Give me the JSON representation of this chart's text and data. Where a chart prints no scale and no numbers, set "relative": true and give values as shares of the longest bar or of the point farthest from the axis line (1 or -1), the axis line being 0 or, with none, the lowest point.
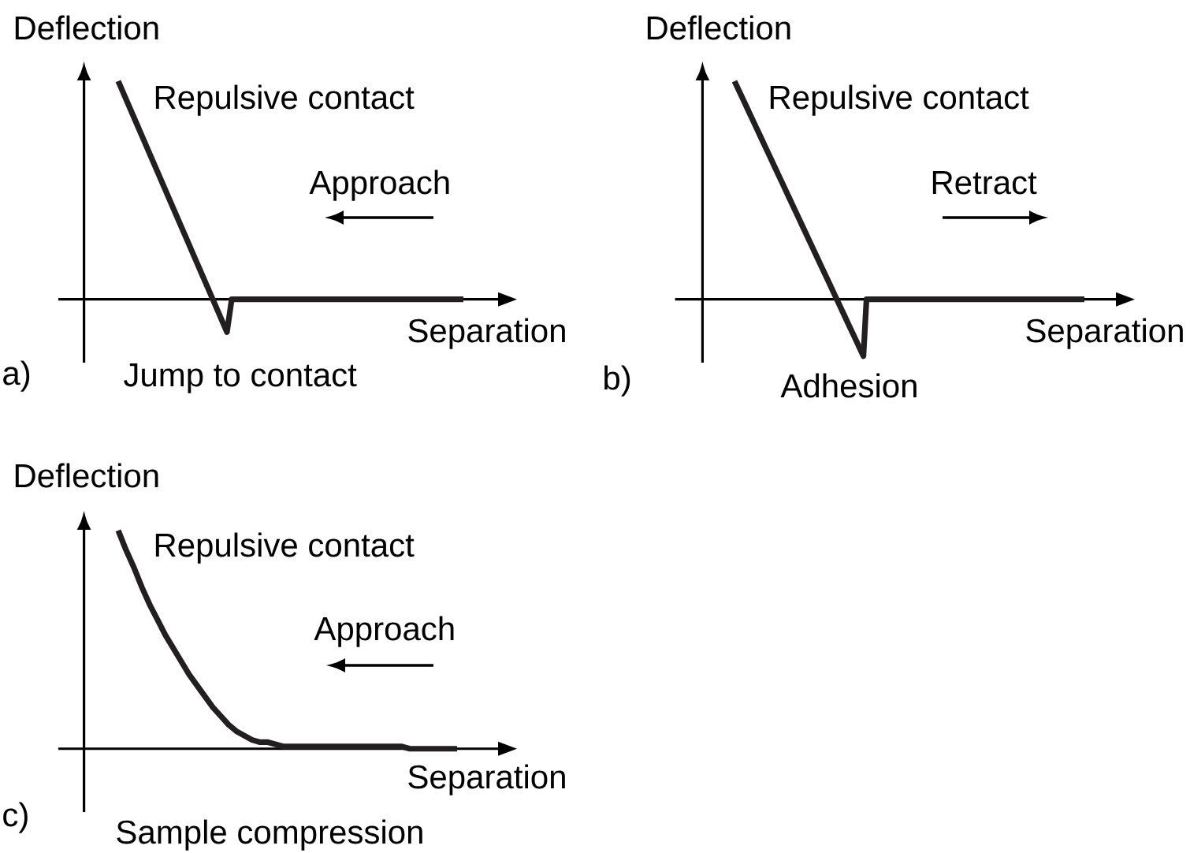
{
  "chart_data": [
    {
      "type": "line",
      "title": "a)",
      "xlabel": "Separation",
      "ylabel": "Deflection",
      "relative": true,
      "categories": [
        null,
        null,
        null,
        null,
        null,
        null,
        null,
        null,
        null,
        null,
        null,
        null,
        null,
        null,
        null,
        null,
        null,
        null,
        null,
        null,
        null,
        null,
        null,
        null,
        null,
        null,
        null,
        null,
        null,
        null,
        null,
        null,
        null,
        null,
        null,
        null,
        null,
        null,
        null,
        null,
        null,
        null,
        null,
        null,
        null,
        null,
        null,
        null,
        null,
        null,
        null,
        null,
        null,
        null,
        null,
        null,
        null,
        null,
        null,
        null,
        null,
        null,
        null,
        null,
        null,
        null,
        null,
        null,
        null,
        null,
        null,
        null,
        null,
        null
      ],
      "series": [
        {
          "color": "#231f20",
          "values": [
            1,
            0.95,
            0.9,
            0.85,
            0.8,
            0.75,
            0.7,
            0.65,
            0.6,
            0.55,
            0.5,
            0.45,
            0.4,
            0.35,
            0.3,
            0.25,
            0.2,
            0.15,
            0.1,
            0.05,
            0,
            -0.05,
            -0.1,
            -0.15,
            0,
            0,
            0,
            0,
            0,
            0,
            0,
            0,
            0,
            0,
            0,
            0,
            0,
            0,
            0,
            0,
            0,
            0,
            0,
            0,
            0,
            0,
            0,
            0,
            0,
            0,
            0,
            0,
            0,
            0,
            0,
            0,
            0,
            0,
            0,
            0,
            0,
            0,
            0,
            0,
            0,
            0,
            0,
            0,
            0,
            0,
            0,
            0,
            0,
            0
          ]
        }
      ],
      "annotations": [
        "Repulsive contact",
        "Approach",
        "Jump to contact"
      ]
    },
    {
      "type": "line",
      "title": "b)",
      "xlabel": "Separation",
      "ylabel": "Deflection",
      "relative": true,
      "categories": [
        null,
        null,
        null,
        null,
        null,
        null,
        null,
        null,
        null,
        null,
        null,
        null,
        null,
        null,
        null,
        null,
        null,
        null,
        null,
        null,
        null,
        null,
        null,
        null,
        null,
        null,
        null,
        null,
        null,
        null,
        null,
        null,
        null,
        null,
        null,
        null,
        null,
        null,
        null,
        null,
        null,
        null,
        null,
        null,
        null,
        null,
        null,
        null,
        null,
        null,
        null,
        null,
        null,
        null,
        null,
        null,
        null,
        null,
        null,
        null,
        null,
        null,
        null,
        null,
        null,
        null,
        null,
        null,
        null,
        null,
        null,
        null,
        null,
        null,
        null,
        null,
        null,
        null,
        null,
        null,
        null,
        null,
        null,
        null,
        null,
        null,
        null,
        null,
        null,
        null,
        null,
        null,
        null,
        null,
        null,
        null,
        null,
        null,
        null,
        null,
        null,
        null,
        null,
        null,
        null,
        null,
        null,
        null,
        null,
        null,
        null,
        null,
        null,
        null,
        null
      ],
      "series": [
        {
          "color": "#231f20",
          "values": [
            1,
            0.97,
            0.94,
            0.91,
            0.88,
            0.85,
            0.82,
            0.79,
            0.76,
            0.73,
            0.7,
            0.67,
            0.64,
            0.61,
            0.58,
            0.55,
            0.52,
            0.49,
            0.46,
            0.43,
            0.4,
            0.37,
            0.34,
            0.31,
            0.28,
            0.25,
            0.22,
            0.19,
            0.16,
            0.13,
            0.1,
            0.07,
            0.04,
            0.01,
            -0.02,
            -0.05,
            -0.08,
            -0.11,
            -0.14,
            -0.17,
            -0.2,
            -0.23,
            -0.26,
            0,
            0,
            0,
            0,
            0,
            0,
            0,
            0,
            0,
            0,
            0,
            0,
            0,
            0,
            0,
            0,
            0,
            0,
            0,
            0,
            0,
            0,
            0,
            0,
            0,
            0,
            0,
            0,
            0,
            0,
            0,
            0,
            0,
            0,
            0,
            0,
            0,
            0,
            0,
            0,
            0,
            0,
            0,
            0,
            0,
            0,
            0,
            0,
            0,
            0,
            0,
            0,
            0,
            0,
            0,
            0,
            0,
            0,
            0,
            0,
            0,
            0,
            0,
            0,
            0,
            0,
            0,
            0,
            0,
            0,
            0,
            0
          ]
        }
      ],
      "annotations": [
        "Repulsive contact",
        "Retract",
        "Adhesion"
      ]
    },
    {
      "type": "line",
      "title": "c)",
      "xlabel": "Separation",
      "ylabel": "Deflection",
      "relative": true,
      "categories": [
        null,
        null,
        null,
        null,
        null,
        null,
        null,
        null,
        null,
        null,
        null,
        null,
        null,
        null,
        null,
        null,
        null,
        null,
        null,
        null,
        null,
        null,
        null,
        null,
        null,
        null,
        null,
        null,
        null,
        null,
        null,
        null,
        null,
        null,
        null,
        null,
        null,
        null,
        null,
        null,
        null,
        null,
        null,
        null
      ],
      "series": [
        {
          "color": "#231f20",
          "values": [
            1,
            0.91,
            0.83,
            0.74,
            0.66,
            0.59,
            0.52,
            0.46,
            0.4,
            0.34,
            0.29,
            0.24,
            0.19,
            0.15,
            0.11,
            0.08,
            0.06,
            0.04,
            0.03,
            0.03,
            0.02,
            0.01,
            0.01,
            0.01,
            0.01,
            0.01,
            0.01,
            0.01,
            0.01,
            0.01,
            0.01,
            0.01,
            0.01,
            0.01,
            0.01,
            0.01,
            0.01,
            0,
            0,
            0,
            0,
            0,
            0,
            0
          ]
        }
      ],
      "annotations": [
        "Repulsive contact",
        "Approach",
        "Sample compression"
      ]
    }
  ]
}
